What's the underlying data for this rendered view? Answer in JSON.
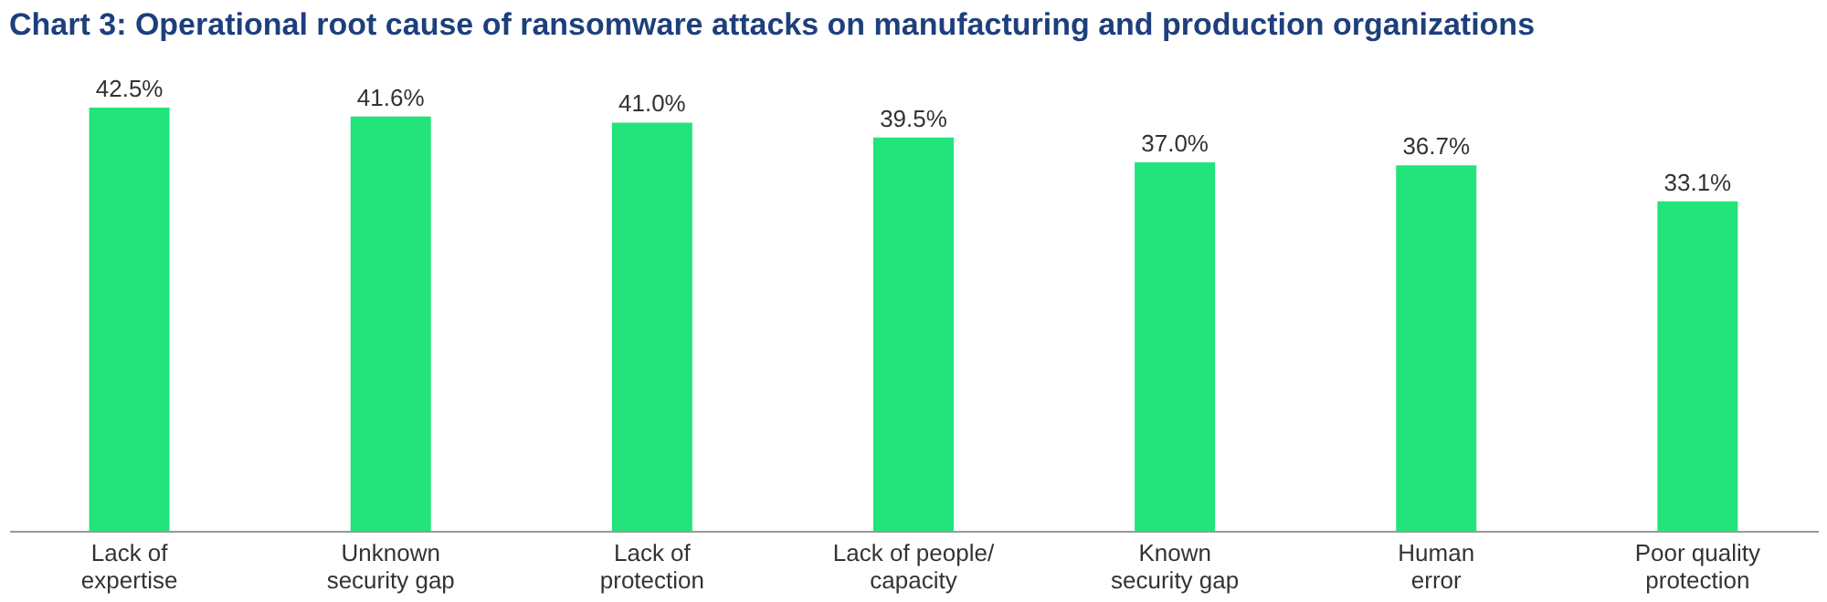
{
  "chart_data": {
    "type": "bar",
    "title": "Chart 3: Operational root cause of ransomware attacks on manufacturing and production organizations",
    "categories": [
      "Lack of\nexpertise",
      "Unknown\nsecurity gap",
      "Lack of\nprotection",
      "Lack of people/\ncapacity",
      "Known\nsecurity gap",
      "Human\nerror",
      "Poor quality\nprotection"
    ],
    "values": [
      42.5,
      41.6,
      41.0,
      39.5,
      37.0,
      36.7,
      33.1
    ],
    "value_labels": [
      "42.5%",
      "41.6%",
      "41.0%",
      "39.5%",
      "37.0%",
      "36.7%",
      "33.1%"
    ],
    "color": "#22e47a",
    "grid": false
  }
}
